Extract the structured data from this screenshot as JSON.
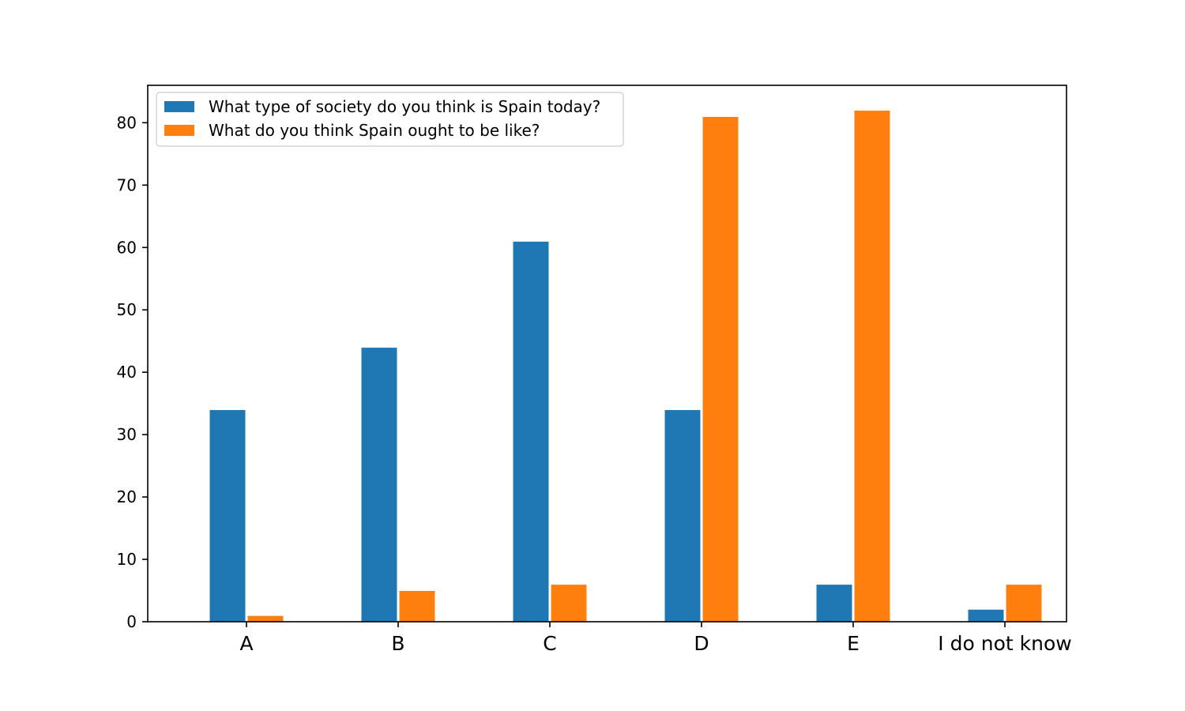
{
  "chart_data": {
    "type": "bar",
    "categories": [
      "A",
      "B",
      "C",
      "D",
      "E",
      "I do not know"
    ],
    "series": [
      {
        "name": "What type of society do you think is Spain today?",
        "color": "#1f77b4",
        "values": [
          34,
          44,
          61,
          34,
          6,
          2
        ]
      },
      {
        "name": "What do you think Spain ought to be like?",
        "color": "#ff7f0e",
        "values": [
          1,
          5,
          6,
          81,
          82,
          6
        ]
      }
    ],
    "title": "",
    "xlabel": "",
    "ylabel": "",
    "ylim": [
      0,
      86
    ],
    "yticks": [
      0,
      10,
      20,
      30,
      40,
      50,
      60,
      70,
      80
    ],
    "grid": false,
    "legend_position": "top-left"
  }
}
